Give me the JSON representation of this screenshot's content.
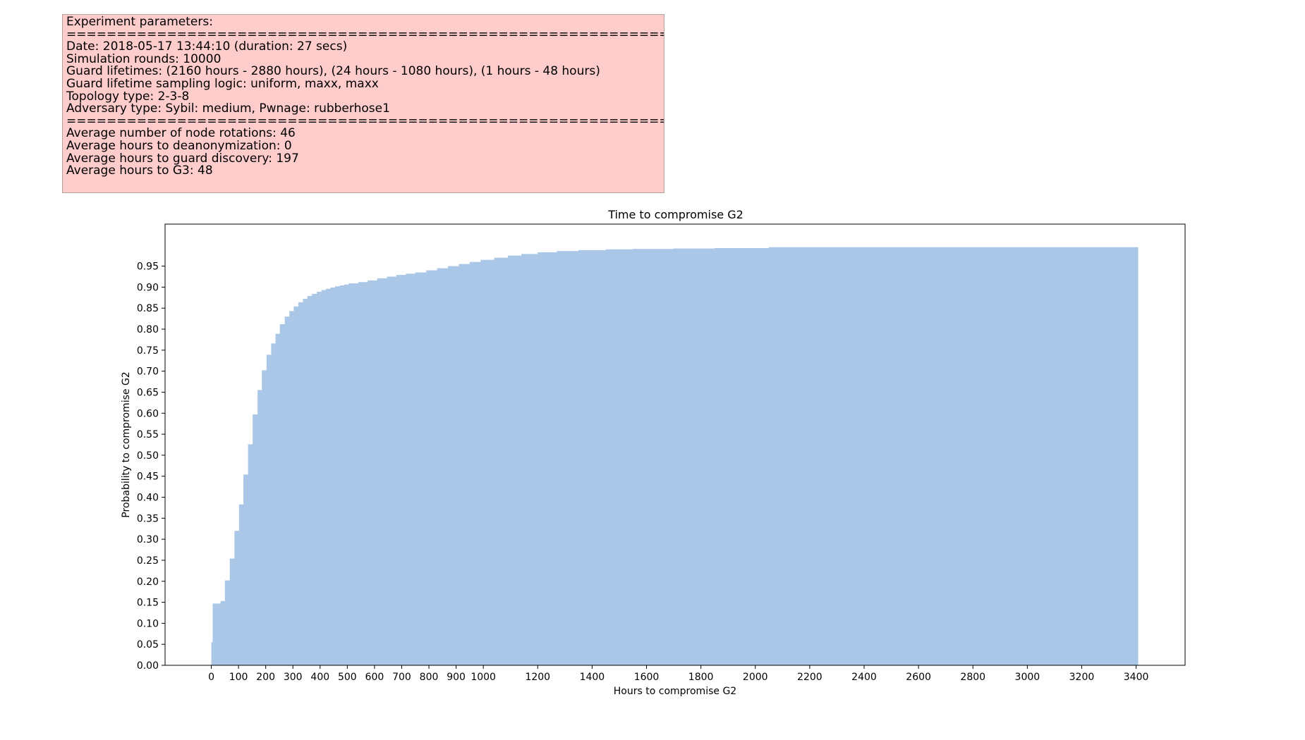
{
  "info_box": {
    "lines": [
      "Experiment parameters:",
      "===============================================================",
      "Date: 2018-05-17 13:44:10 (duration: 27 secs)",
      "Simulation rounds: 10000",
      "Guard lifetimes: (2160 hours - 2880 hours), (24 hours - 1080 hours), (1 hours - 48 hours)",
      "Guard lifetime sampling logic: uniform, maxx, maxx",
      "Topology type: 2-3-8",
      "Adversary type: Sybil: medium, Pwnage: rubberhose1",
      "===============================================================",
      "Average number of node rotations: 46",
      "Average hours to deanonymization: 0",
      "Average hours to guard discovery: 197",
      "Average hours to G3: 48"
    ]
  },
  "colors": {
    "bar_fill": "#aac7e8",
    "info_box_bg": "#ffcccc"
  },
  "chart_data": {
    "type": "bar",
    "subtype": "cumulative histogram",
    "title": "Time to compromise G2",
    "xlabel": "Hours to compromise G2",
    "ylabel": "Probability to compromise G2",
    "xlim": [
      -170,
      3580
    ],
    "ylim": [
      0,
      1.05
    ],
    "x_ticks": [
      0,
      100,
      200,
      300,
      400,
      500,
      600,
      700,
      800,
      900,
      1000,
      1200,
      1400,
      1600,
      1800,
      2000,
      2200,
      2400,
      2600,
      2800,
      3000,
      3200,
      3400
    ],
    "y_ticks": [
      "0.00",
      "0.05",
      "0.10",
      "0.15",
      "0.20",
      "0.25",
      "0.30",
      "0.35",
      "0.40",
      "0.45",
      "0.50",
      "0.55",
      "0.60",
      "0.65",
      "0.70",
      "0.75",
      "0.80",
      "0.85",
      "0.90",
      "0.95"
    ],
    "grid": false,
    "legend": false,
    "x_end": 3400,
    "points": [
      [
        0,
        0.055
      ],
      [
        5,
        0.147
      ],
      [
        34,
        0.153
      ],
      [
        50,
        0.202
      ],
      [
        68,
        0.254
      ],
      [
        85,
        0.32
      ],
      [
        102,
        0.383
      ],
      [
        118,
        0.454
      ],
      [
        135,
        0.526
      ],
      [
        152,
        0.597
      ],
      [
        170,
        0.655
      ],
      [
        186,
        0.702
      ],
      [
        203,
        0.739
      ],
      [
        220,
        0.766
      ],
      [
        236,
        0.789
      ],
      [
        252,
        0.812
      ],
      [
        270,
        0.83
      ],
      [
        287,
        0.843
      ],
      [
        303,
        0.854
      ],
      [
        320,
        0.864
      ],
      [
        337,
        0.872
      ],
      [
        353,
        0.879
      ],
      [
        370,
        0.884
      ],
      [
        388,
        0.889
      ],
      [
        405,
        0.893
      ],
      [
        421,
        0.896
      ],
      [
        438,
        0.899
      ],
      [
        455,
        0.902
      ],
      [
        472,
        0.904
      ],
      [
        488,
        0.906
      ],
      [
        505,
        0.909
      ],
      [
        540,
        0.912
      ],
      [
        575,
        0.916
      ],
      [
        610,
        0.921
      ],
      [
        645,
        0.925
      ],
      [
        680,
        0.929
      ],
      [
        715,
        0.932
      ],
      [
        750,
        0.935
      ],
      [
        790,
        0.94
      ],
      [
        830,
        0.945
      ],
      [
        870,
        0.95
      ],
      [
        910,
        0.955
      ],
      [
        950,
        0.96
      ],
      [
        990,
        0.965
      ],
      [
        1040,
        0.97
      ],
      [
        1090,
        0.975
      ],
      [
        1140,
        0.979
      ],
      [
        1200,
        0.983
      ],
      [
        1270,
        0.986
      ],
      [
        1350,
        0.988
      ],
      [
        1450,
        0.99
      ],
      [
        1550,
        0.991
      ],
      [
        1700,
        0.992
      ],
      [
        1850,
        0.993
      ],
      [
        2050,
        0.995
      ],
      [
        3400,
        0.995
      ]
    ]
  }
}
